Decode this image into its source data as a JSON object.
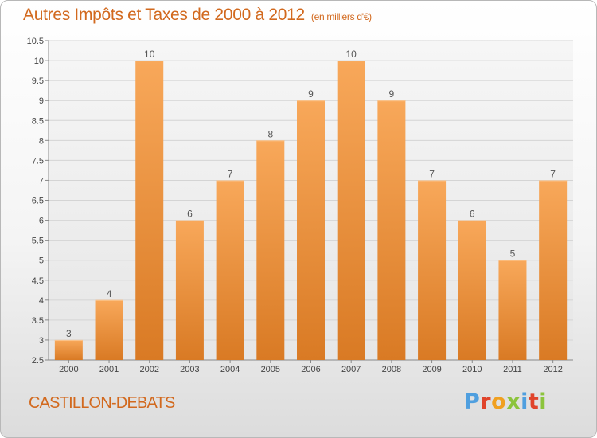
{
  "title": "Autres Impôts et Taxes de 2000 à 2012",
  "title_unit": "(en milliers d'€)",
  "commune": "CASTILLON-DEBATS",
  "logo": {
    "text": "Proxiti",
    "letter_colors": [
      "#4f9fdf",
      "#e0442b",
      "#f0a020",
      "#8cc43c",
      "#4f9fdf",
      "#e0442b",
      "#8cc43c"
    ]
  },
  "colors": {
    "title": "#d2691e",
    "bar_top": "#f8a85a",
    "bar_bottom": "#d97a24",
    "grid": "#d4d4d4"
  },
  "chart_data": {
    "type": "bar",
    "title": "Autres Impôts et Taxes de 2000 à 2012",
    "subtitle": "(en milliers d'€)",
    "categories": [
      "2000",
      "2001",
      "2002",
      "2003",
      "2004",
      "2005",
      "2006",
      "2007",
      "2008",
      "2009",
      "2010",
      "2011",
      "2012"
    ],
    "values": [
      3,
      4,
      10,
      6,
      7,
      8,
      9,
      10,
      9,
      7,
      6,
      5,
      7
    ],
    "data_labels": [
      "3",
      "4",
      "10",
      "6",
      "7",
      "8",
      "9",
      "10",
      "9",
      "7",
      "6",
      "5",
      "7"
    ],
    "ylim": [
      2.5,
      10.5
    ],
    "yticks": [
      "2.5",
      "3",
      "3.5",
      "4",
      "4.5",
      "5",
      "5.5",
      "6",
      "6.5",
      "7",
      "7.5",
      "8",
      "8.5",
      "9",
      "9.5",
      "10",
      "10.5"
    ],
    "grid": true,
    "legend": "none"
  }
}
